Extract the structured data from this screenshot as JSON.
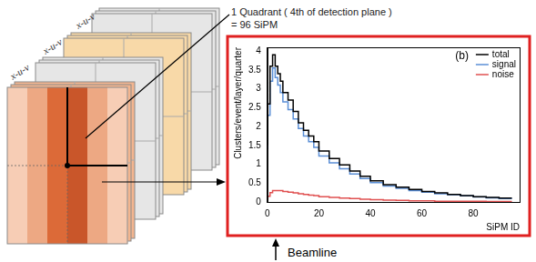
{
  "diagram": {
    "layer_labels": [
      "x-u-v",
      "x-u-v",
      "x-u-v"
    ],
    "quadrant_label": "1 Quadrant ( 4th of detection plane )",
    "quadrant_count": "= 96 SiPM",
    "beam_label": "Beamline"
  },
  "chart_data": {
    "type": "line",
    "annotation": "(b)",
    "x_label": "SiPM ID",
    "y_label": "Clusters/event/layer/quarter",
    "x": [
      0,
      1,
      2,
      3,
      4,
      5,
      6,
      8,
      10,
      12,
      14,
      16,
      18,
      20,
      24,
      28,
      32,
      36,
      40,
      45,
      50,
      55,
      60,
      65,
      70,
      75,
      80,
      85,
      90,
      95
    ],
    "series": [
      {
        "name": "total",
        "color": "#000000",
        "values": [
          1.5,
          2.6,
          3.6,
          3.9,
          3.6,
          3.4,
          3.2,
          2.9,
          2.7,
          2.4,
          2.1,
          1.9,
          1.75,
          1.6,
          1.35,
          1.15,
          0.98,
          0.82,
          0.68,
          0.56,
          0.46,
          0.39,
          0.33,
          0.28,
          0.24,
          0.2,
          0.17,
          0.14,
          0.12,
          0.1
        ]
      },
      {
        "name": "signal",
        "color": "#5b8fd6",
        "values": [
          1.4,
          2.3,
          3.2,
          3.55,
          3.3,
          3.1,
          2.9,
          2.65,
          2.45,
          2.2,
          1.95,
          1.75,
          1.6,
          1.45,
          1.22,
          1.04,
          0.88,
          0.74,
          0.62,
          0.51,
          0.42,
          0.36,
          0.3,
          0.26,
          0.22,
          0.19,
          0.16,
          0.13,
          0.11,
          0.09
        ]
      },
      {
        "name": "noise",
        "color": "#e05050",
        "values": [
          0.05,
          0.15,
          0.25,
          0.3,
          0.3,
          0.3,
          0.3,
          0.28,
          0.26,
          0.24,
          0.22,
          0.2,
          0.18,
          0.17,
          0.14,
          0.12,
          0.1,
          0.09,
          0.07,
          0.06,
          0.05,
          0.04,
          0.03,
          0.03,
          0.02,
          0.02,
          0.02,
          0.02,
          0.01,
          0.01
        ]
      }
    ],
    "xlim": [
      0,
      98
    ],
    "xticks": [
      0,
      20,
      40,
      60,
      80
    ],
    "ylim": [
      0,
      4.1
    ],
    "yticks": [
      0,
      0.5,
      1,
      1.5,
      2,
      2.5,
      3,
      3.5,
      4
    ],
    "legend": "upper right",
    "grid": false
  }
}
